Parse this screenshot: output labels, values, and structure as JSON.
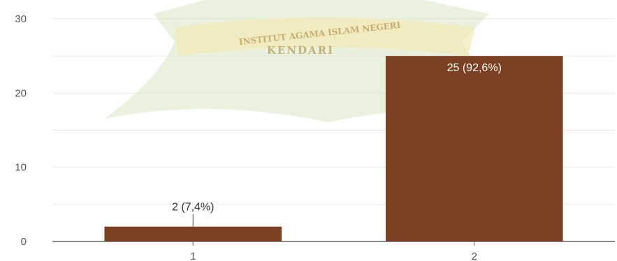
{
  "watermark": {
    "line1": "INSTITUT AGAMA ISLAM NEGERI",
    "line2": "KENDARI"
  },
  "colors": {
    "bar": "#7b3f21",
    "axis": "#666666",
    "grid": "#e6e6e6",
    "watermark_green": "#cfe3b3",
    "watermark_gold": "#f3e2a6"
  },
  "chart_data": {
    "type": "bar",
    "title": "",
    "xlabel": "",
    "ylabel": "",
    "categories": [
      "1",
      "2"
    ],
    "values": [
      2,
      25
    ],
    "data_labels": [
      "2 (7,4%)",
      "25 (92,6%)"
    ],
    "ylim": [
      0,
      30
    ],
    "yticks": [
      0,
      10,
      20,
      30
    ],
    "grid": true,
    "legend": "none"
  }
}
